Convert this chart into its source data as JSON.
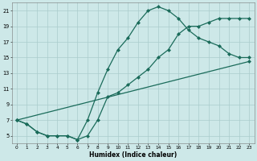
{
  "xlabel": "Humidex (Indice chaleur)",
  "bg_color": "#cde8e8",
  "grid_color": "#aacccc",
  "line_color": "#1a6b5a",
  "x_min": 0,
  "x_max": 23,
  "y_min": 4,
  "y_max": 22,
  "yticks": [
    5,
    7,
    9,
    11,
    13,
    15,
    17,
    19,
    21
  ],
  "xticks": [
    0,
    1,
    2,
    3,
    4,
    5,
    6,
    7,
    8,
    9,
    10,
    11,
    12,
    13,
    14,
    15,
    16,
    17,
    18,
    19,
    20,
    21,
    22,
    23
  ],
  "line1_x": [
    0,
    1,
    2,
    3,
    4,
    5,
    6,
    7,
    8,
    9,
    10,
    11,
    12,
    13,
    14,
    15,
    16,
    17,
    18,
    19,
    20,
    21,
    22,
    23
  ],
  "line1_y": [
    7,
    6.5,
    5.5,
    5,
    5,
    5,
    4.5,
    5,
    7,
    10,
    10.5,
    11.5,
    12.5,
    13.5,
    15,
    16,
    18,
    19,
    19,
    19.5,
    20,
    20,
    20,
    20
  ],
  "line2_x": [
    0,
    1,
    2,
    3,
    4,
    5,
    6,
    7,
    8,
    9,
    10,
    11,
    12,
    13,
    14,
    15,
    16,
    17,
    18,
    19,
    20,
    21,
    22,
    23
  ],
  "line2_y": [
    7,
    6.5,
    5.5,
    5,
    5,
    5,
    4.5,
    7,
    10.5,
    13.5,
    16,
    17.5,
    19.5,
    21,
    21.5,
    21,
    20,
    18.5,
    17.5,
    17,
    16.5,
    15.5,
    15,
    15
  ],
  "line3_x": [
    0,
    23
  ],
  "line3_y": [
    7,
    14.5
  ],
  "marker": "D",
  "markersize": 2,
  "linewidth": 0.9
}
